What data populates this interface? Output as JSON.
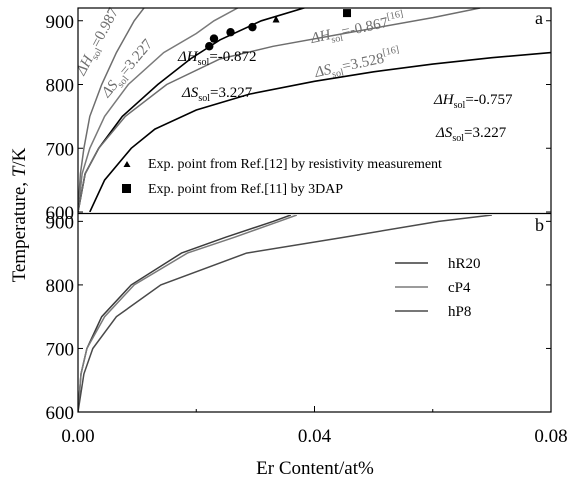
{
  "chart_data": [
    {
      "panel": "a",
      "type": "line",
      "x_range": [
        0,
        0.08
      ],
      "ylim": [
        600,
        920
      ],
      "y_ticks": [
        600,
        700,
        800,
        900
      ],
      "series": [
        {
          "color": "#6e6e6e",
          "points": [
            [
              0.0,
              600
            ],
            [
              0.0004,
              660
            ],
            [
              0.001,
              700
            ],
            [
              0.002,
              750
            ],
            [
              0.004,
              800
            ],
            [
              0.0065,
              850
            ],
            [
              0.0095,
              900
            ],
            [
              0.012,
              930
            ]
          ]
        },
        {
          "color": "#7a7a7a",
          "points": [
            [
              0.0,
              600
            ],
            [
              0.0007,
              660
            ],
            [
              0.002,
              700
            ],
            [
              0.0045,
              750
            ],
            [
              0.0085,
              800
            ],
            [
              0.0145,
              850
            ],
            [
              0.02,
              880
            ],
            [
              0.023,
              900
            ],
            [
              0.028,
              925
            ]
          ]
        },
        {
          "color": "#000000",
          "points": [
            [
              0.0,
              600
            ],
            [
              0.0012,
              660
            ],
            [
              0.0035,
              700
            ],
            [
              0.0075,
              750
            ],
            [
              0.0135,
              800
            ],
            [
              0.019,
              840
            ],
            [
              0.024,
              870
            ],
            [
              0.031,
              900
            ],
            [
              0.04,
              925
            ]
          ]
        },
        {
          "color": "#6e6e6e",
          "points": [
            [
              0.0,
              600
            ],
            [
              0.0012,
              660
            ],
            [
              0.0035,
              700
            ],
            [
              0.008,
              750
            ],
            [
              0.015,
              800
            ],
            [
              0.024,
              840
            ],
            [
              0.033,
              860
            ],
            [
              0.045,
              880
            ],
            [
              0.06,
              905
            ],
            [
              0.068,
              920
            ]
          ]
        },
        {
          "color": "#000000",
          "points": [
            [
              0.002,
              600
            ],
            [
              0.0045,
              650
            ],
            [
              0.009,
              700
            ],
            [
              0.013,
              730
            ],
            [
              0.02,
              760
            ],
            [
              0.029,
              785
            ],
            [
              0.04,
              805
            ],
            [
              0.05,
              820
            ],
            [
              0.06,
              832
            ],
            [
              0.07,
              842
            ],
            [
              0.08,
              850
            ]
          ]
        }
      ],
      "annotations": [
        {
          "h_value": "=0.987",
          "s_value": "=3.227",
          "color": "#6e6e6e",
          "rotation": -52
        },
        {
          "h_value": "=-0.872",
          "s_value": "=3.227",
          "color": "#000000",
          "rotation": 0
        },
        {
          "h_value": "=-0.867",
          "h_ref": "[16]",
          "s_value": "=3.528",
          "s_ref": "[16]",
          "color": "#6e6e6e",
          "rotation": -12
        },
        {
          "h_value": "=-0.757",
          "s_value": "=3.227",
          "color": "#000000",
          "rotation": 0
        }
      ],
      "symbol_h": "ΔH",
      "symbol_s": "ΔS",
      "subscript": "sol",
      "triangle_points": [
        [
          0.0335,
          902
        ]
      ],
      "circle_points": [
        [
          0.0222,
          860
        ],
        [
          0.023,
          872
        ],
        [
          0.0258,
          882
        ],
        [
          0.0295,
          890
        ]
      ],
      "square_points": [
        [
          0.0455,
          912
        ]
      ],
      "legend": [
        {
          "marker": "triangle",
          "text": "Exp. point from Ref.[12] by resistivity measurement"
        },
        {
          "marker": "square",
          "text": "Exp. point from Ref.[11] by 3DAP"
        }
      ],
      "panel_label": "a"
    },
    {
      "panel": "b",
      "type": "line",
      "x_range": [
        0,
        0.08
      ],
      "ylim": [
        600,
        910
      ],
      "y_ticks": [
        600,
        700,
        800,
        900
      ],
      "series": [
        {
          "name": "hR20",
          "color": "#3c3c3c",
          "points": [
            [
              0.0,
              600
            ],
            [
              0.0005,
              660
            ],
            [
              0.0015,
              700
            ],
            [
              0.004,
              750
            ],
            [
              0.009,
              800
            ],
            [
              0.0175,
              850
            ],
            [
              0.025,
              875
            ],
            [
              0.033,
              900
            ],
            [
              0.036,
              910
            ]
          ]
        },
        {
          "name": "cP4",
          "color": "#7a7a7a",
          "points": [
            [
              0.0,
              600
            ],
            [
              0.0005,
              660
            ],
            [
              0.0015,
              700
            ],
            [
              0.0045,
              750
            ],
            [
              0.0095,
              800
            ],
            [
              0.0185,
              850
            ],
            [
              0.0265,
              875
            ],
            [
              0.034,
              900
            ],
            [
              0.037,
              910
            ]
          ]
        },
        {
          "name": "hP8",
          "color": "#4a4a4a",
          "points": [
            [
              0.0,
              600
            ],
            [
              0.001,
              660
            ],
            [
              0.0025,
              700
            ],
            [
              0.0065,
              750
            ],
            [
              0.014,
              800
            ],
            [
              0.0285,
              850
            ],
            [
              0.045,
              875
            ],
            [
              0.061,
              900
            ],
            [
              0.07,
              910
            ]
          ]
        }
      ],
      "panel_label": "b",
      "xlabel": "Er Content/at%",
      "x_ticks": [
        "0.00",
        "0.04",
        "0.08"
      ],
      "x_tick_values": [
        0,
        0.04,
        0.08
      ]
    }
  ],
  "ylabel": {
    "prefix": "Temperature, ",
    "var": "T",
    "suffix": "/K"
  }
}
